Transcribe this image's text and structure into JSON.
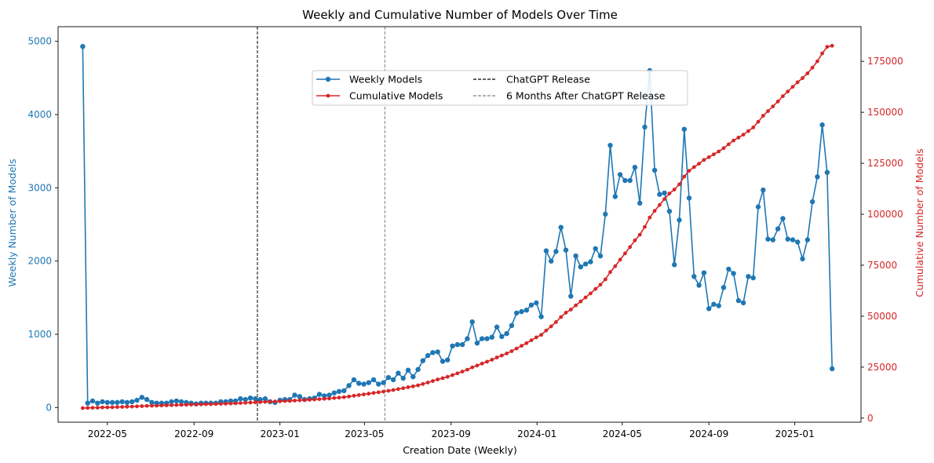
{
  "chart_data": {
    "type": "line",
    "title": "Weekly and Cumulative Number of Models Over Time",
    "xlabel": "Creation Date (Weekly)",
    "ylabel_left": "Weekly Number of Models",
    "ylabel_right": "Cumulative Number of Models",
    "x_ticks": [
      "2022-05",
      "2022-09",
      "2023-01",
      "2023-05",
      "2023-09",
      "2024-01",
      "2024-05",
      "2024-09",
      "2025-01"
    ],
    "y_left_ticks": [
      0,
      1000,
      2000,
      3000,
      4000,
      5000
    ],
    "y_right_ticks": [
      0,
      25000,
      50000,
      75000,
      100000,
      125000,
      150000,
      175000
    ],
    "ylim_left": [
      -200,
      5200
    ],
    "ylim_right": [
      -2000,
      192000
    ],
    "xlim": [
      "2022-02-20",
      "2025-04-05"
    ],
    "colors": {
      "weekly": "#1f77b4",
      "cumulative": "#d62728",
      "left_axis": "#1f77b4",
      "right_axis": "#d62728",
      "chatgpt": "#000000",
      "six_months": "#808080"
    },
    "vlines": [
      {
        "label": "ChatGPT Release",
        "date": "2022-11-30"
      },
      {
        "label": "6 Months After ChatGPT Release",
        "date": "2023-05-30"
      }
    ],
    "legend": {
      "placement": "upper-center",
      "entries": [
        "Weekly Models",
        "Cumulative Models",
        "ChatGPT Release",
        "6 Months After ChatGPT Release"
      ]
    },
    "start_date": "2022-03-27",
    "weekly": [
      4930,
      60,
      90,
      60,
      80,
      70,
      70,
      70,
      80,
      70,
      80,
      100,
      140,
      110,
      70,
      60,
      60,
      60,
      80,
      90,
      80,
      70,
      60,
      50,
      60,
      60,
      60,
      60,
      80,
      80,
      90,
      90,
      120,
      110,
      130,
      120,
      110,
      120,
      80,
      70,
      100,
      110,
      110,
      170,
      150,
      110,
      120,
      130,
      180,
      160,
      170,
      200,
      220,
      230,
      300,
      380,
      330,
      320,
      340,
      380,
      320,
      340,
      410,
      380,
      470,
      400,
      510,
      420,
      520,
      640,
      710,
      750,
      760,
      630,
      650,
      840,
      860,
      860,
      940,
      1170,
      880,
      940,
      940,
      960,
      1100,
      970,
      1010,
      1120,
      1290,
      1310,
      1330,
      1400,
      1430,
      1240,
      2140,
      2000,
      2130,
      2460,
      2150,
      1520,
      2070,
      1920,
      1960,
      1990,
      2170,
      2070,
      2640,
      3580,
      2880,
      3180,
      3100,
      3100,
      3280,
      2790,
      3830,
      4600,
      3240,
      2910,
      2930,
      2680,
      1950,
      2560,
      3800,
      2860,
      1790,
      1670,
      1840,
      1350,
      1410,
      1390,
      1640,
      1890,
      1830,
      1460,
      1430,
      1790,
      1770,
      2740,
      2970,
      2300,
      2290,
      2440,
      2580,
      2300,
      2290,
      2260,
      2030,
      2290,
      2810,
      3150,
      3860,
      3210,
      530
    ]
  }
}
